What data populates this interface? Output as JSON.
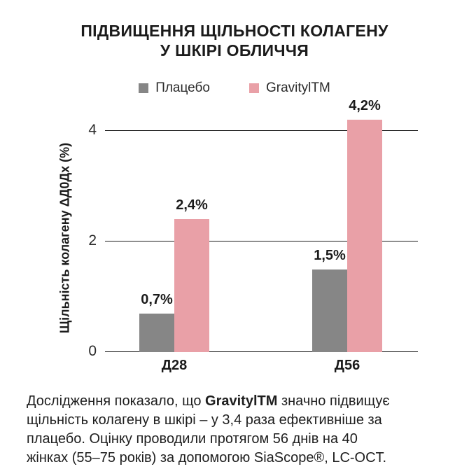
{
  "title": {
    "line1": "ПІДВИЩЕННЯ ЩІЛЬНОСТІ КОЛАГЕНУ",
    "line2": "У ШКІРІ ОБЛИЧЧЯ"
  },
  "legend": [
    {
      "label": "Плацебо",
      "color": "#868686"
    },
    {
      "label": "GravitylTM",
      "color": "#E9A0A7"
    }
  ],
  "chart_data": {
    "type": "bar",
    "title": "ПІДВИЩЕННЯ ЩІЛЬНОСТІ КОЛАГЕНУ У ШКІРІ ОБЛИЧЧЯ",
    "categories": [
      "Д28",
      "Д56"
    ],
    "series": [
      {
        "name": "Плацебо",
        "color": "#868686",
        "values": [
          0.7,
          1.5
        ],
        "labels": [
          "0,7%",
          "1,5%"
        ]
      },
      {
        "name": "GravitylTM",
        "color": "#E9A0A7",
        "values": [
          2.4,
          4.2
        ],
        "labels": [
          "2,4%",
          "4,2%"
        ]
      }
    ],
    "xlabel": "",
    "ylabel": "Щільність колагену ΔД0Дх (%)",
    "yticks": [
      0,
      2,
      4
    ],
    "ylim": [
      0,
      4.3
    ],
    "grid": "horizontal",
    "legend_position": "top"
  },
  "footnote": {
    "lines": [
      {
        "pre": "Дослідження показало, що ",
        "bold": "GravitylTM",
        "post": " значно підвищує"
      },
      {
        "pre": "щільність колагену в шкірі – у 3,4 раза ефективніше за",
        "bold": "",
        "post": ""
      },
      {
        "pre": "плацебо. Оцінку проводили протягом 56 днів на 40",
        "bold": "",
        "post": ""
      },
      {
        "pre": "жінках (55–75 років) за допомогою SiaScope®, LC-OCT.",
        "bold": "",
        "post": ""
      }
    ]
  }
}
